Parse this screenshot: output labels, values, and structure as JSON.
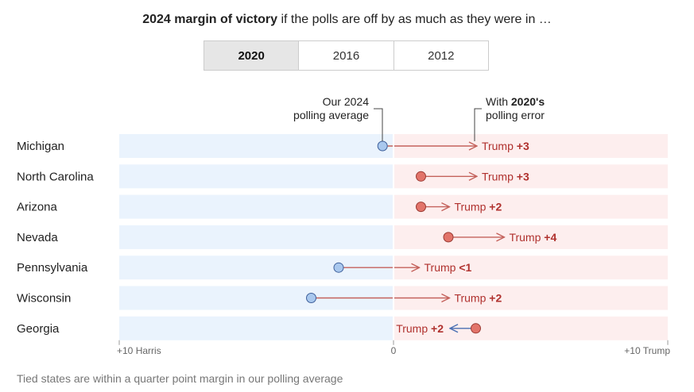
{
  "header": {
    "title_bold": "2024 margin of victory",
    "title_rest": " if the polls are off by as much as they were in …"
  },
  "tabs": [
    {
      "label": "2020",
      "active": true
    },
    {
      "label": "2016",
      "active": false
    },
    {
      "label": "2012",
      "active": false
    }
  ],
  "annotations": {
    "avg_line1": "Our 2024",
    "avg_line2": "polling average",
    "err_line1_pre": "With ",
    "err_line1_bold": "2020's",
    "err_line2": "polling error"
  },
  "footnote": "Tied states are within a quarter point margin in our polling average",
  "colors": {
    "harris_bg": "#eaf3fd",
    "trump_bg": "#fdeeee",
    "harris_dot": "#a9c8ee",
    "trump_dot": "#e2746a",
    "trump_text": "#b0312e",
    "harris_arrow": "#4a6fb3",
    "trump_arrow": "#c4625c"
  },
  "chart_data": {
    "type": "dot-arrow",
    "xlim": [
      -10,
      10
    ],
    "x_ticks": [
      {
        "value": -10,
        "label": "+10 Harris"
      },
      {
        "value": 0,
        "label": "0"
      },
      {
        "value": 10,
        "label": "+10 Trump"
      }
    ],
    "states": [
      {
        "name": "Michigan",
        "poll_avg": -0.4,
        "with_error": 3.1,
        "label_prefix": "Trump ",
        "label_value": "+3"
      },
      {
        "name": "North Carolina",
        "poll_avg": 1.0,
        "with_error": 3.1,
        "label_prefix": "Trump ",
        "label_value": "+3"
      },
      {
        "name": "Arizona",
        "poll_avg": 1.0,
        "with_error": 2.1,
        "label_prefix": "Trump ",
        "label_value": "+2"
      },
      {
        "name": "Nevada",
        "poll_avg": 2.0,
        "with_error": 4.1,
        "label_prefix": "Trump ",
        "label_value": "+4"
      },
      {
        "name": "Pennsylvania",
        "poll_avg": -2.0,
        "with_error": 1.0,
        "label_prefix": "Trump ",
        "label_value": "<1"
      },
      {
        "name": "Wisconsin",
        "poll_avg": -3.0,
        "with_error": 2.1,
        "label_prefix": "Trump ",
        "label_value": "+2"
      },
      {
        "name": "Georgia",
        "poll_avg": 3.0,
        "with_error": 2.0,
        "label_prefix": "Trump ",
        "label_value": "+2"
      }
    ]
  }
}
